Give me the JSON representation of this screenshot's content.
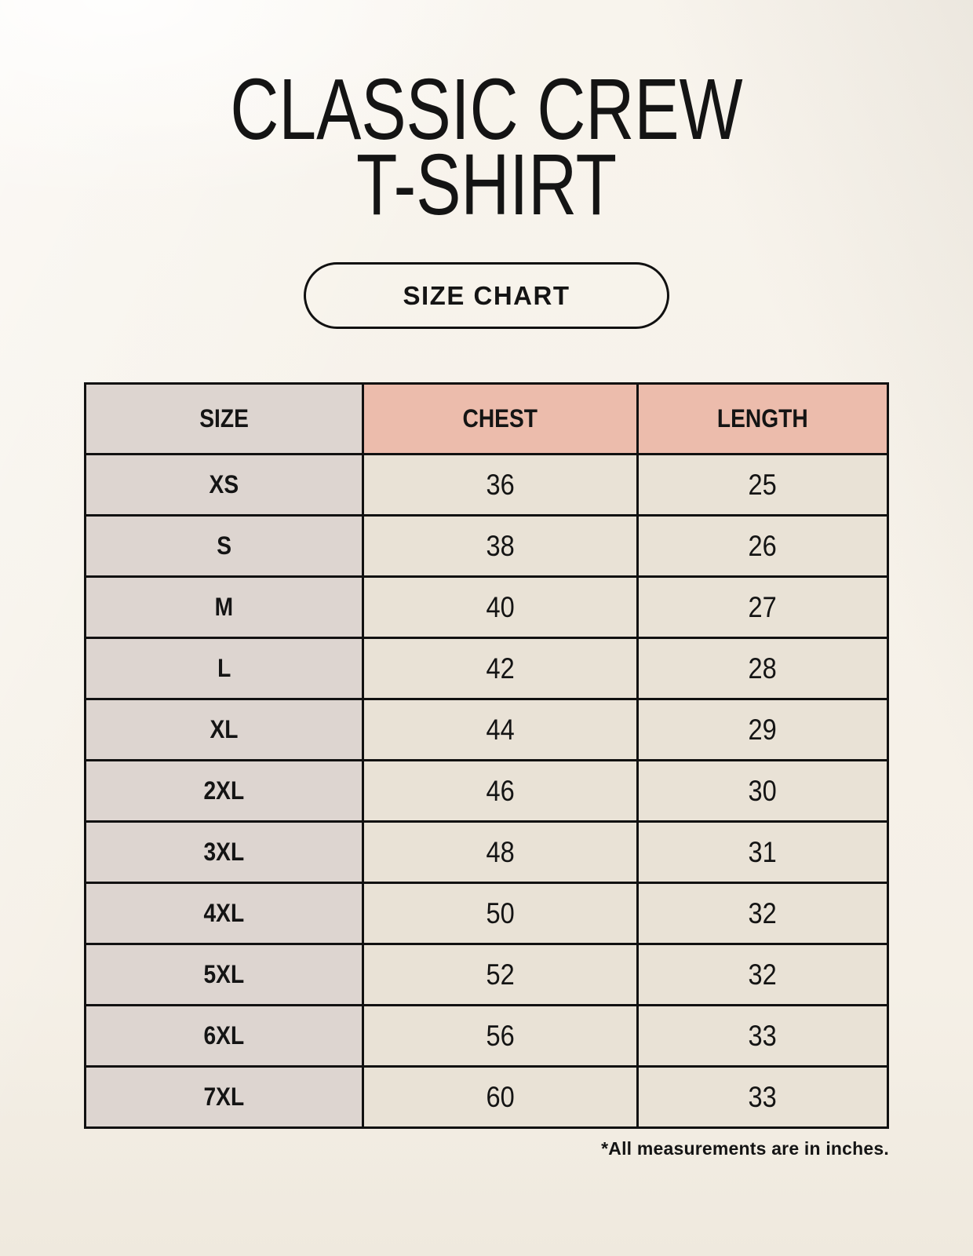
{
  "header": {
    "title_line1": "CLASSIC CREW",
    "title_line2": "T-SHIRT",
    "size_chart_button": "SIZE CHART"
  },
  "footnote": "*All measurements are in inches.",
  "colors": {
    "background": "#f8f4ed",
    "size_column_bg": "#ddd5d0",
    "header_accent_bg": "#ecbcac",
    "cell_bg": "#e9e2d6",
    "border": "#111111",
    "text": "#141414"
  },
  "chart_data": {
    "type": "table",
    "title": "Classic Crew T-Shirt Size Chart",
    "units": "inches",
    "columns": [
      "SIZE",
      "CHEST",
      "LENGTH"
    ],
    "rows": [
      [
        "XS",
        "36",
        "25"
      ],
      [
        "S",
        "38",
        "26"
      ],
      [
        "M",
        "40",
        "27"
      ],
      [
        "L",
        "42",
        "28"
      ],
      [
        "XL",
        "44",
        "29"
      ],
      [
        "2XL",
        "46",
        "30"
      ],
      [
        "3XL",
        "48",
        "31"
      ],
      [
        "4XL",
        "50",
        "32"
      ],
      [
        "5XL",
        "52",
        "32"
      ],
      [
        "6XL",
        "56",
        "33"
      ],
      [
        "7XL",
        "60",
        "33"
      ]
    ]
  }
}
